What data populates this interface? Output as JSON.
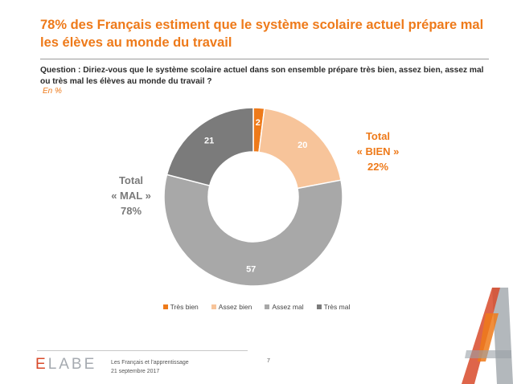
{
  "title": "78% des Français estiment que le système scolaire actuel prépare mal les élèves au monde du travail",
  "question": "Question : Diriez-vous que le système scolaire actuel dans son ensemble prépare très bien, assez bien, assez mal ou très mal les élèves au monde du travail ?",
  "unit": "En  %",
  "totals": {
    "bien": {
      "line1": "Total",
      "line2": "« BIEN »",
      "line3": "22%"
    },
    "mal": {
      "line1": "Total",
      "line2": "« MAL »",
      "line3": "78%"
    }
  },
  "chart_data": {
    "type": "pie",
    "variant": "donut",
    "categories": [
      "Très bien",
      "Assez bien",
      "Assez mal",
      "Très mal"
    ],
    "values": [
      2,
      20,
      57,
      21
    ],
    "colors": [
      "#ee7a1a",
      "#f7c49a",
      "#a8a8a8",
      "#7b7b7b"
    ],
    "label_colors": [
      "#ffffff",
      "#ffffff",
      "#ffffff",
      "#ffffff"
    ],
    "legend_position": "bottom"
  },
  "footer": {
    "logo": "ELABE",
    "line1": "Les Français et l'apprentissage",
    "line2": "21 septembre 2017",
    "page": "7"
  },
  "brand_colors": {
    "accent": "#ee7a1a",
    "logo_red": "#d84a2a",
    "grey": "#a5aab0"
  }
}
